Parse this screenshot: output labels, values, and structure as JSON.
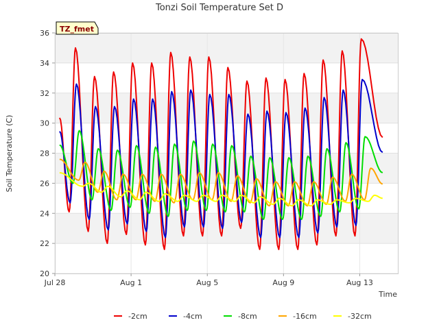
{
  "chart_data": {
    "type": "line",
    "title": "Tonzi Soil Temperature Set D",
    "xlabel": "Time",
    "ylabel": "Soil Temperature (C)",
    "badge": "TZ_fmet",
    "xlim_days": [
      0,
      18
    ],
    "ylim": [
      20,
      36
    ],
    "yticks": [
      20,
      22,
      24,
      26,
      28,
      30,
      32,
      34,
      36
    ],
    "xticks": [
      {
        "day": 0,
        "label": "Jul 28"
      },
      {
        "day": 4,
        "label": "Aug 1"
      },
      {
        "day": 8,
        "label": "Aug 5"
      },
      {
        "day": 12,
        "label": "Aug 9"
      },
      {
        "day": 16,
        "label": "Aug 13"
      }
    ],
    "grid": true,
    "legend_position": "bottom",
    "series": [
      {
        "name": "-2cm",
        "color": "#ee0000",
        "depth_code": "2",
        "daily_max": [
          35.0,
          33.1,
          33.4,
          34.0,
          34.0,
          34.7,
          34.4,
          34.4,
          33.7,
          32.8,
          33.0,
          32.9,
          33.3,
          34.2,
          34.8,
          35.6
        ],
        "daily_min": [
          24.1,
          22.8,
          22.0,
          22.6,
          21.9,
          21.6,
          22.5,
          22.5,
          22.5,
          23.0,
          21.6,
          21.6,
          21.6,
          21.9,
          22.5,
          22.5
        ],
        "first_day": 0.5
      },
      {
        "name": "-4cm",
        "color": "#0000cc",
        "depth_code": "4",
        "daily_max": [
          32.6,
          31.1,
          31.1,
          31.6,
          31.6,
          32.1,
          32.2,
          31.9,
          31.9,
          30.6,
          30.8,
          30.7,
          31.0,
          31.7,
          32.2,
          32.9
        ],
        "daily_min": [
          24.7,
          23.6,
          22.9,
          23.3,
          22.8,
          22.4,
          23.1,
          23.1,
          23.0,
          23.4,
          22.4,
          22.4,
          22.4,
          22.7,
          23.1,
          23.2
        ],
        "first_day": 0.55
      },
      {
        "name": "-8cm",
        "color": "#00dd00",
        "depth_code": "8",
        "daily_max": [
          29.5,
          28.3,
          28.2,
          28.5,
          28.4,
          28.6,
          28.8,
          28.6,
          28.5,
          27.8,
          27.7,
          27.7,
          27.8,
          28.3,
          28.7,
          29.1
        ],
        "daily_min": [
          26.0,
          24.9,
          24.2,
          24.4,
          24.0,
          23.8,
          24.2,
          24.2,
          24.1,
          24.1,
          23.6,
          23.6,
          23.6,
          23.8,
          24.1,
          24.3
        ],
        "first_day": 0.7
      },
      {
        "name": "-16cm",
        "color": "#ffa500",
        "depth_code": "16",
        "daily_max": [
          27.4,
          26.8,
          26.6,
          26.6,
          26.6,
          26.6,
          26.7,
          26.7,
          26.5,
          26.3,
          26.1,
          26.1,
          26.1,
          26.4,
          26.6,
          27.0
        ],
        "daily_min": [
          26.2,
          25.4,
          24.9,
          24.9,
          24.8,
          24.7,
          24.9,
          24.9,
          24.8,
          24.7,
          24.5,
          24.5,
          24.5,
          24.6,
          24.8,
          24.9
        ],
        "first_day": 1.0
      },
      {
        "name": "-32cm",
        "color": "#ffff00",
        "depth_code": "32",
        "daily_max": [
          26.0,
          25.8,
          25.5,
          25.4,
          25.3,
          25.2,
          25.2,
          25.2,
          25.2,
          25.1,
          25.0,
          24.9,
          24.9,
          24.9,
          25.0,
          25.2
        ],
        "daily_min": [
          25.8,
          25.4,
          25.1,
          24.9,
          24.8,
          24.8,
          24.8,
          24.8,
          24.8,
          24.7,
          24.6,
          24.5,
          24.5,
          24.6,
          24.7,
          24.8
        ],
        "first_day": 1.2
      }
    ]
  }
}
